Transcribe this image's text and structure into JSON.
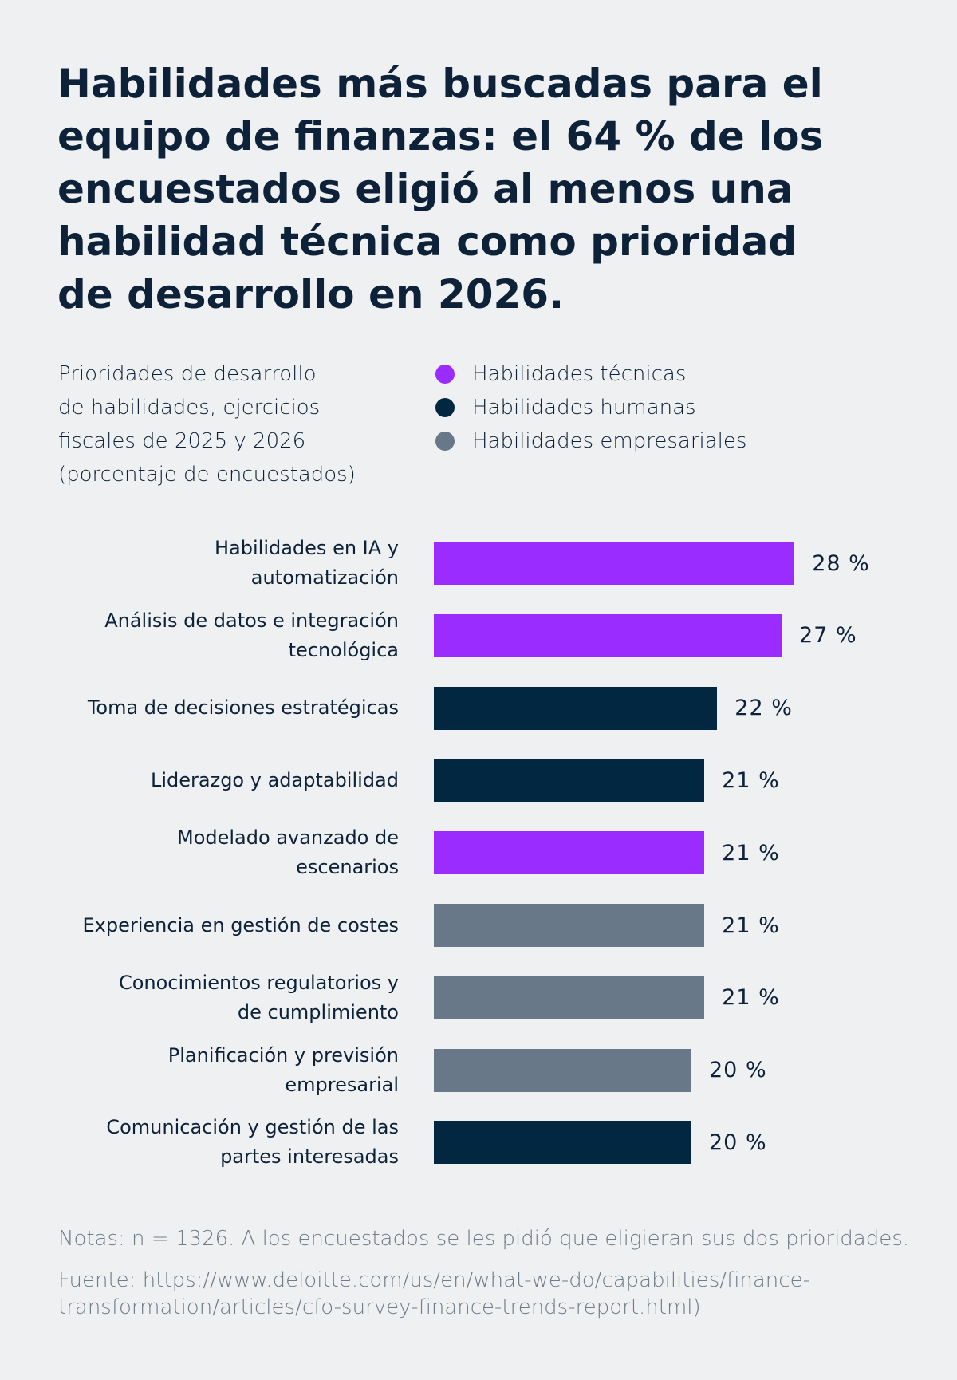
{
  "chart_data": {
    "type": "bar",
    "title": "Habilidades más buscadas para el equipo de finanzas: el 64 % de los encuestados eligió al menos una habilidad técnica como prioridad de desarrollo en 2026.",
    "subtitle": "Prioridades de desarrollo\nde habilidades, ejercicios\nfiscales de 2025 y 2026\n(porcentaje de encuestados)",
    "categories": [
      "Habilidades en IA y\nautomatización",
      "Análisis de datos e integración\ntecnológica",
      "Toma de decisiones estratégicas",
      "Liderazgo y adaptabilidad",
      "Modelado avanzado de\nescenarios",
      "Experiencia en gestión de costes",
      "Conocimientos regulatorios y\nde cumplimiento",
      "Planificación y previsión\nempresarial",
      "Comunicación y gestión de las\npartes interesadas"
    ],
    "series": [
      {
        "name": "Habilidades técnicas",
        "color": "#9b2cff",
        "values": [
          28,
          27,
          null,
          null,
          21,
          null,
          null,
          null,
          null
        ],
        "value_labels": [
          "28 %",
          "27 %",
          null,
          null,
          "21 %",
          null,
          null,
          null,
          null
        ]
      },
      {
        "name": "Habilidades humanas",
        "color": "#012840",
        "values": [
          null,
          null,
          22,
          21,
          null,
          null,
          null,
          null,
          20
        ],
        "value_labels": [
          null,
          null,
          "22 %",
          "21 %",
          null,
          null,
          null,
          null,
          "20 %"
        ]
      },
      {
        "name": "Habilidades empresariales",
        "color": "#687888",
        "values": [
          null,
          null,
          null,
          null,
          null,
          21,
          21,
          20,
          null
        ],
        "value_labels": [
          null,
          null,
          null,
          null,
          null,
          "21 %",
          "21 %",
          "20 %",
          null
        ]
      }
    ],
    "notes": "Notas: n = 1326. A los encuestados se les pidió que eligieran sus dos prioridades.",
    "source": "Fuente: https://www.deloitte.com/us/en/what-we-do/capabilities/finance-transformation/articles/cfo-survey-finance-trends-report.html)"
  }
}
